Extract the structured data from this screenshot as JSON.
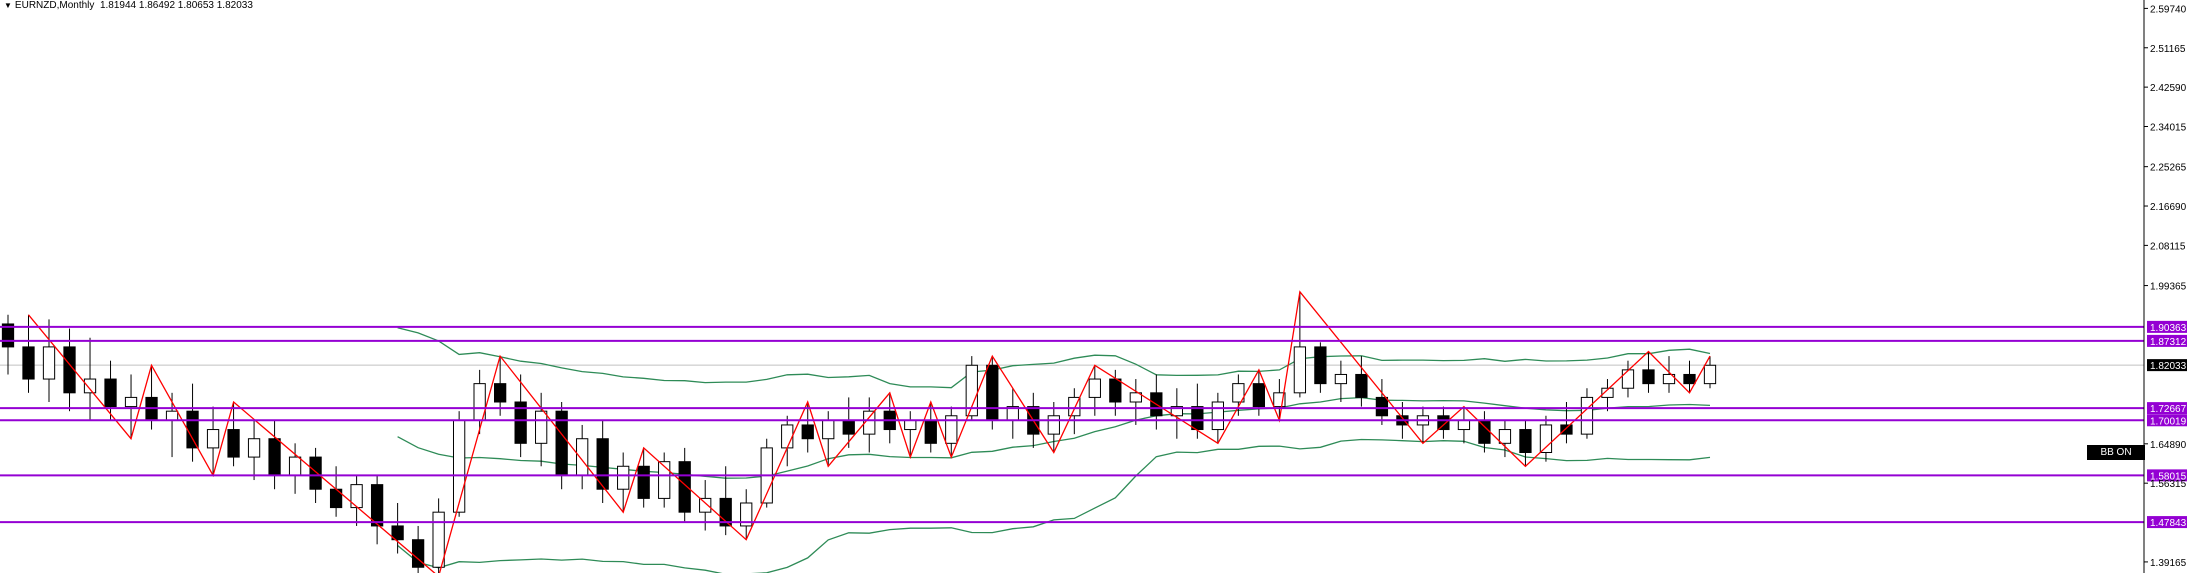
{
  "header": {
    "symbol": "EURNZD,Monthly",
    "ohlc": "1.81944 1.86492 1.80653 1.82033"
  },
  "badge": {
    "label": "BB ON"
  },
  "colors": {
    "candle": "#000000",
    "band": "#2e8b57",
    "zigzag": "#ff0000",
    "level": "#9400d3",
    "current_line": "#c0c0c0"
  },
  "chart_data": {
    "type": "candlestick",
    "ylim": [
      1.3675,
      2.6157
    ],
    "y_ticks": [
      "2.59740",
      "2.51165",
      "2.42590",
      "2.34015",
      "2.25265",
      "2.16690",
      "2.08115",
      "1.99365",
      "1.64890",
      "1.56315",
      "1.39165"
    ],
    "current_price": "1.82033",
    "levels": [
      "1.90363",
      "1.87312",
      "1.72667",
      "1.70019",
      "1.58015",
      "1.47843"
    ],
    "candles": [
      [
        1.91,
        1.93,
        1.8,
        1.86
      ],
      [
        1.86,
        1.93,
        1.76,
        1.79
      ],
      [
        1.79,
        1.92,
        1.74,
        1.86
      ],
      [
        1.86,
        1.9,
        1.72,
        1.76
      ],
      [
        1.76,
        1.88,
        1.7,
        1.79
      ],
      [
        1.79,
        1.83,
        1.7,
        1.73
      ],
      [
        1.73,
        1.8,
        1.66,
        1.75
      ],
      [
        1.75,
        1.82,
        1.68,
        1.7
      ],
      [
        1.7,
        1.76,
        1.62,
        1.72
      ],
      [
        1.72,
        1.78,
        1.61,
        1.64
      ],
      [
        1.64,
        1.73,
        1.58,
        1.68
      ],
      [
        1.68,
        1.74,
        1.6,
        1.62
      ],
      [
        1.62,
        1.7,
        1.57,
        1.66
      ],
      [
        1.66,
        1.7,
        1.55,
        1.58
      ],
      [
        1.58,
        1.65,
        1.54,
        1.62
      ],
      [
        1.62,
        1.64,
        1.52,
        1.55
      ],
      [
        1.55,
        1.6,
        1.49,
        1.51
      ],
      [
        1.51,
        1.58,
        1.47,
        1.56
      ],
      [
        1.56,
        1.58,
        1.43,
        1.47
      ],
      [
        1.47,
        1.52,
        1.41,
        1.44
      ],
      [
        1.44,
        1.47,
        1.36,
        1.38
      ],
      [
        1.38,
        1.53,
        1.36,
        1.5
      ],
      [
        1.5,
        1.72,
        1.49,
        1.7
      ],
      [
        1.7,
        1.81,
        1.67,
        1.78
      ],
      [
        1.78,
        1.84,
        1.71,
        1.74
      ],
      [
        1.74,
        1.8,
        1.62,
        1.65
      ],
      [
        1.65,
        1.76,
        1.6,
        1.72
      ],
      [
        1.72,
        1.74,
        1.55,
        1.58
      ],
      [
        1.58,
        1.69,
        1.55,
        1.66
      ],
      [
        1.66,
        1.7,
        1.52,
        1.55
      ],
      [
        1.55,
        1.63,
        1.5,
        1.6
      ],
      [
        1.6,
        1.64,
        1.51,
        1.53
      ],
      [
        1.53,
        1.63,
        1.51,
        1.61
      ],
      [
        1.61,
        1.64,
        1.48,
        1.5
      ],
      [
        1.5,
        1.57,
        1.46,
        1.53
      ],
      [
        1.53,
        1.6,
        1.45,
        1.47
      ],
      [
        1.47,
        1.55,
        1.44,
        1.52
      ],
      [
        1.52,
        1.66,
        1.51,
        1.64
      ],
      [
        1.64,
        1.71,
        1.6,
        1.69
      ],
      [
        1.69,
        1.74,
        1.63,
        1.66
      ],
      [
        1.66,
        1.72,
        1.6,
        1.7
      ],
      [
        1.7,
        1.75,
        1.64,
        1.67
      ],
      [
        1.67,
        1.75,
        1.63,
        1.72
      ],
      [
        1.72,
        1.76,
        1.65,
        1.68
      ],
      [
        1.68,
        1.72,
        1.62,
        1.7
      ],
      [
        1.7,
        1.74,
        1.63,
        1.65
      ],
      [
        1.65,
        1.73,
        1.62,
        1.71
      ],
      [
        1.71,
        1.84,
        1.7,
        1.82
      ],
      [
        1.82,
        1.84,
        1.68,
        1.7
      ],
      [
        1.7,
        1.77,
        1.66,
        1.73
      ],
      [
        1.73,
        1.76,
        1.64,
        1.67
      ],
      [
        1.67,
        1.74,
        1.63,
        1.71
      ],
      [
        1.71,
        1.77,
        1.67,
        1.75
      ],
      [
        1.75,
        1.82,
        1.71,
        1.79
      ],
      [
        1.79,
        1.81,
        1.71,
        1.74
      ],
      [
        1.74,
        1.79,
        1.69,
        1.76
      ],
      [
        1.76,
        1.8,
        1.68,
        1.71
      ],
      [
        1.71,
        1.77,
        1.66,
        1.73
      ],
      [
        1.73,
        1.78,
        1.66,
        1.68
      ],
      [
        1.68,
        1.76,
        1.65,
        1.74
      ],
      [
        1.74,
        1.8,
        1.71,
        1.78
      ],
      [
        1.78,
        1.81,
        1.71,
        1.73
      ],
      [
        1.73,
        1.79,
        1.7,
        1.76
      ],
      [
        1.76,
        1.98,
        1.75,
        1.86
      ],
      [
        1.86,
        1.87,
        1.76,
        1.78
      ],
      [
        1.78,
        1.83,
        1.74,
        1.8
      ],
      [
        1.8,
        1.84,
        1.73,
        1.75
      ],
      [
        1.75,
        1.79,
        1.69,
        1.71
      ],
      [
        1.71,
        1.74,
        1.66,
        1.69
      ],
      [
        1.69,
        1.73,
        1.65,
        1.71
      ],
      [
        1.71,
        1.73,
        1.66,
        1.68
      ],
      [
        1.68,
        1.73,
        1.65,
        1.7
      ],
      [
        1.7,
        1.72,
        1.63,
        1.65
      ],
      [
        1.65,
        1.7,
        1.62,
        1.68
      ],
      [
        1.68,
        1.7,
        1.6,
        1.63
      ],
      [
        1.63,
        1.71,
        1.61,
        1.69
      ],
      [
        1.69,
        1.74,
        1.65,
        1.67
      ],
      [
        1.67,
        1.77,
        1.66,
        1.75
      ],
      [
        1.75,
        1.79,
        1.72,
        1.77
      ],
      [
        1.77,
        1.83,
        1.75,
        1.81
      ],
      [
        1.81,
        1.85,
        1.76,
        1.78
      ],
      [
        1.78,
        1.84,
        1.76,
        1.8
      ],
      [
        1.8,
        1.83,
        1.76,
        1.78
      ],
      [
        1.78,
        1.84,
        1.77,
        1.82
      ]
    ]
  }
}
